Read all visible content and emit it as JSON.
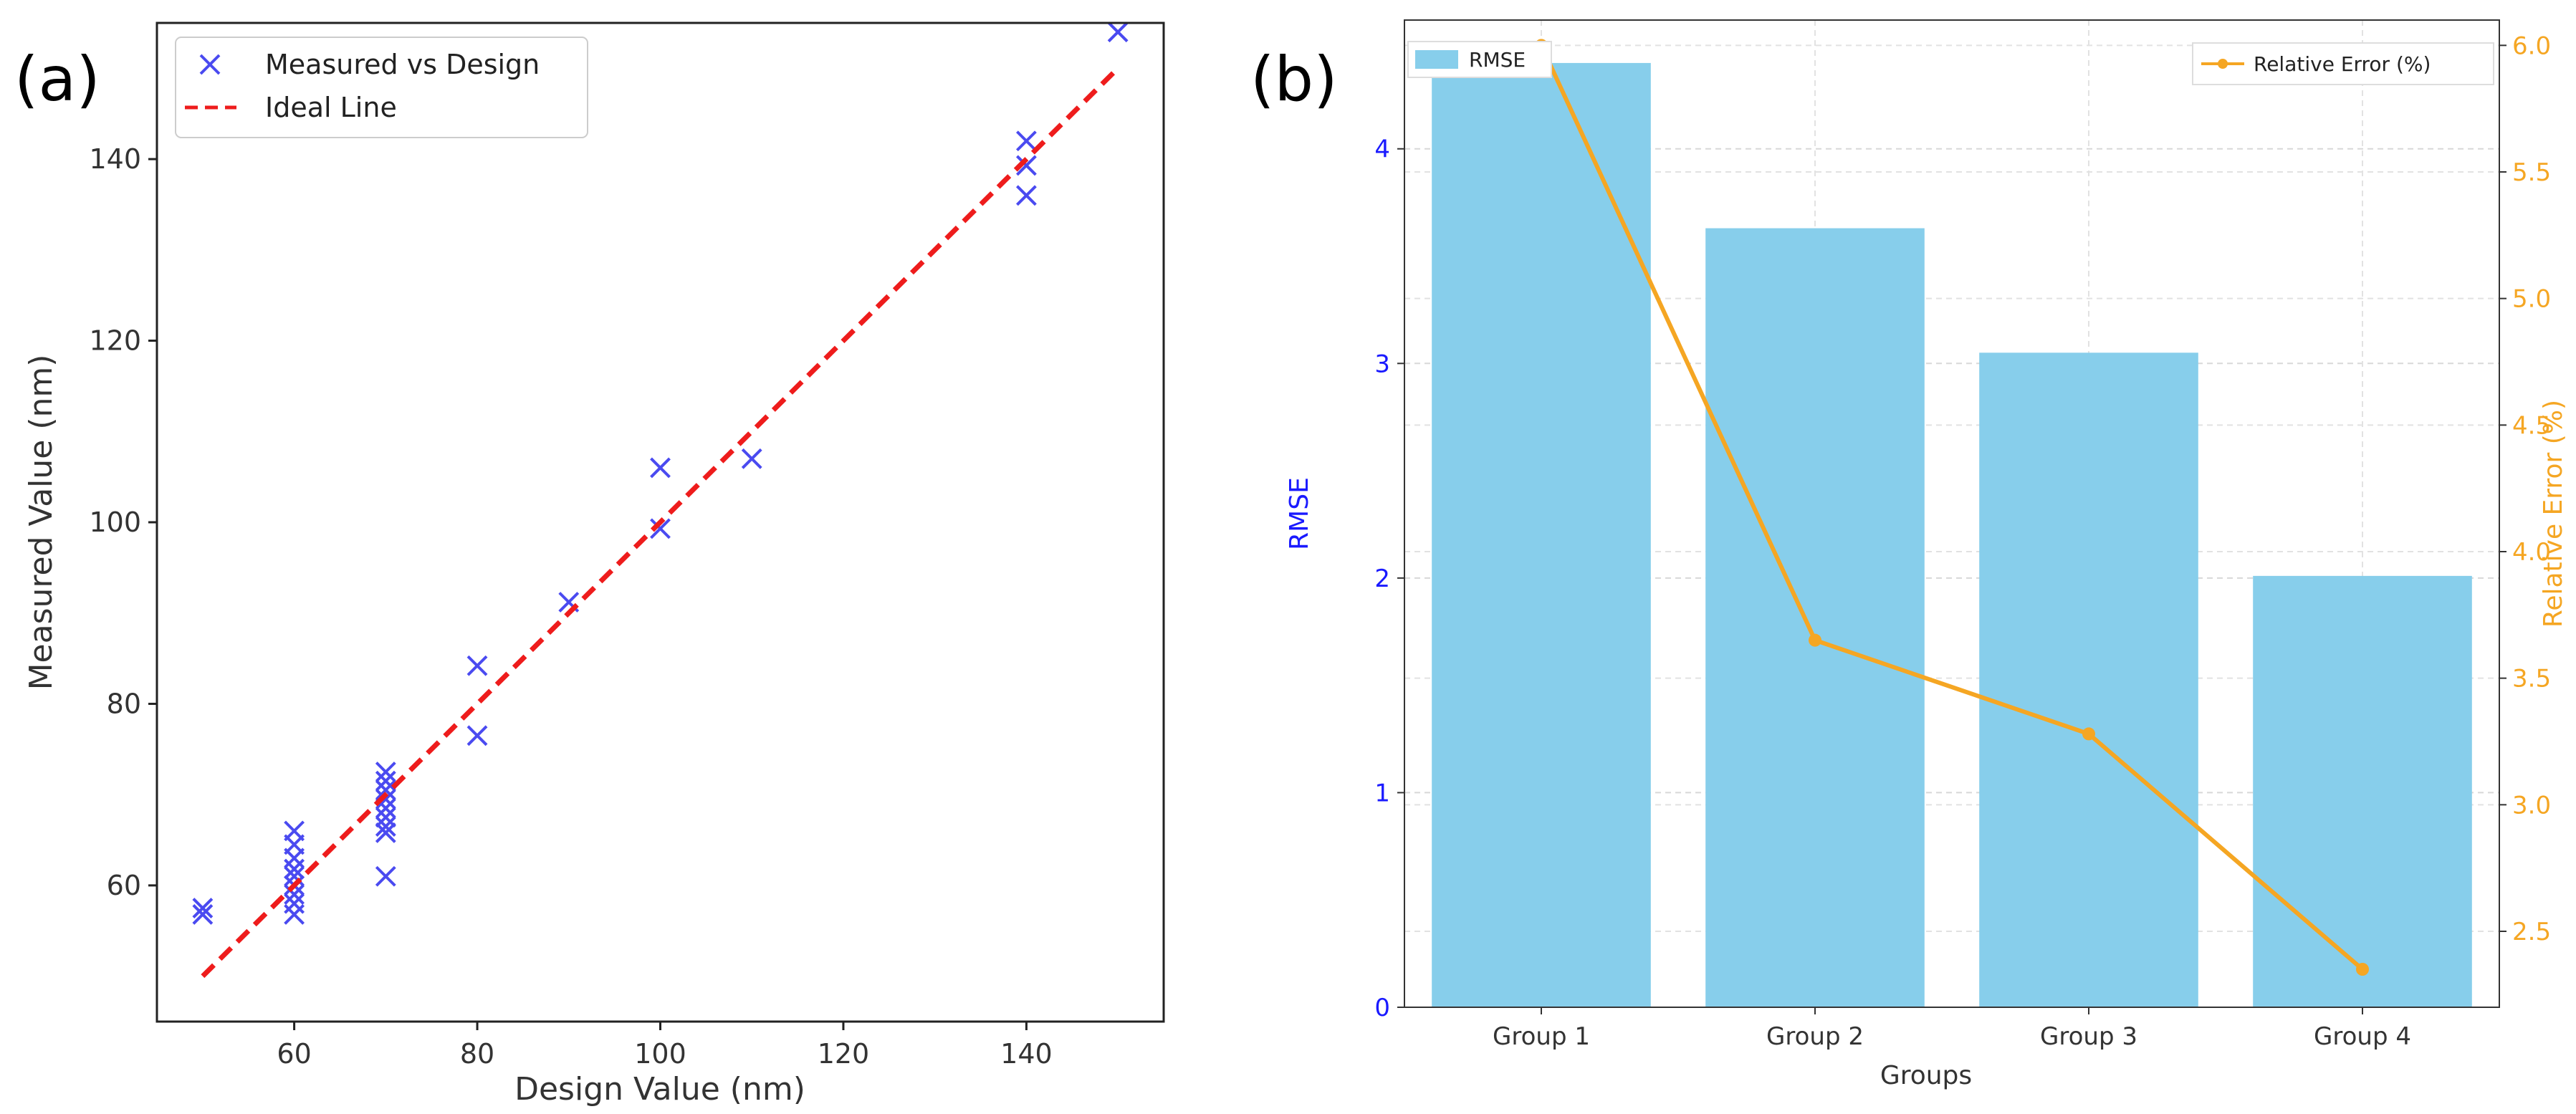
{
  "chart_data": [
    {
      "panel_label": "(a)",
      "type": "scatter",
      "title": "",
      "xlabel": "Design Value (nm)",
      "ylabel": "Measured Value (nm)",
      "xlim": [
        45,
        155
      ],
      "ylim": [
        45,
        155
      ],
      "xticks": [
        60,
        80,
        100,
        120,
        140
      ],
      "yticks": [
        60,
        80,
        100,
        120,
        140
      ],
      "grid": false,
      "legend": {
        "position": "top-left",
        "entries": [
          "Measured vs Design",
          "Ideal Line"
        ]
      },
      "series": [
        {
          "name": "Measured vs Design",
          "marker": "x",
          "color": "#4a4af0",
          "points": [
            [
              50,
              57.5
            ],
            [
              50,
              56.8
            ],
            [
              60,
              66
            ],
            [
              60,
              64.5
            ],
            [
              60,
              63
            ],
            [
              60,
              61.8
            ],
            [
              60,
              61
            ],
            [
              60,
              60
            ],
            [
              60,
              59
            ],
            [
              60,
              58
            ],
            [
              60,
              56.8
            ],
            [
              70,
              72.5
            ],
            [
              70,
              71.5
            ],
            [
              70,
              70.5
            ],
            [
              70,
              69.5
            ],
            [
              70,
              68.5
            ],
            [
              70,
              67.5
            ],
            [
              70,
              66.5
            ],
            [
              70,
              65.8
            ],
            [
              70,
              61
            ],
            [
              80,
              84.2
            ],
            [
              80,
              76.5
            ],
            [
              90,
              91.2
            ],
            [
              100,
              106
            ],
            [
              100,
              99.3
            ],
            [
              110,
              107
            ],
            [
              140,
              142
            ],
            [
              140,
              139.3
            ],
            [
              140,
              136
            ],
            [
              150,
              154
            ]
          ]
        },
        {
          "name": "Ideal Line",
          "style": "dashed",
          "color": "#ee1c1c",
          "points": [
            [
              50,
              50
            ],
            [
              150,
              150
            ]
          ]
        }
      ]
    },
    {
      "panel_label": "(b)",
      "type": "bar",
      "title": "",
      "xlabel": "Groups",
      "ylabel": "RMSE",
      "y2label": "Relative Error (%)",
      "categories": [
        "Group 1",
        "Group 2",
        "Group 3",
        "Group 4"
      ],
      "ylim": [
        0,
        4.6
      ],
      "y2lim": [
        2.2,
        6.1
      ],
      "yticks": [
        0,
        1,
        2,
        3,
        4
      ],
      "y2ticks": [
        "2.5",
        "3.0",
        "3.5",
        "4.0",
        "4.5",
        "5.0",
        "5.5",
        "6.0"
      ],
      "grid": true,
      "series": [
        {
          "name": "RMSE",
          "axis": "left",
          "type": "bar",
          "color": "#87ceeb",
          "values": [
            4.4,
            3.63,
            3.05,
            2.01
          ]
        },
        {
          "name": "Relative Error (%)",
          "axis": "right",
          "type": "line",
          "color": "#f5a623",
          "values": [
            6.0,
            3.65,
            3.28,
            2.35
          ]
        }
      ],
      "legend": [
        {
          "name": "RMSE",
          "position": "top-left"
        },
        {
          "name": "Relative Error (%)",
          "position": "top-right"
        }
      ],
      "axis_colors": {
        "left": "#1a1aff",
        "right": "#f5a623"
      }
    }
  ]
}
